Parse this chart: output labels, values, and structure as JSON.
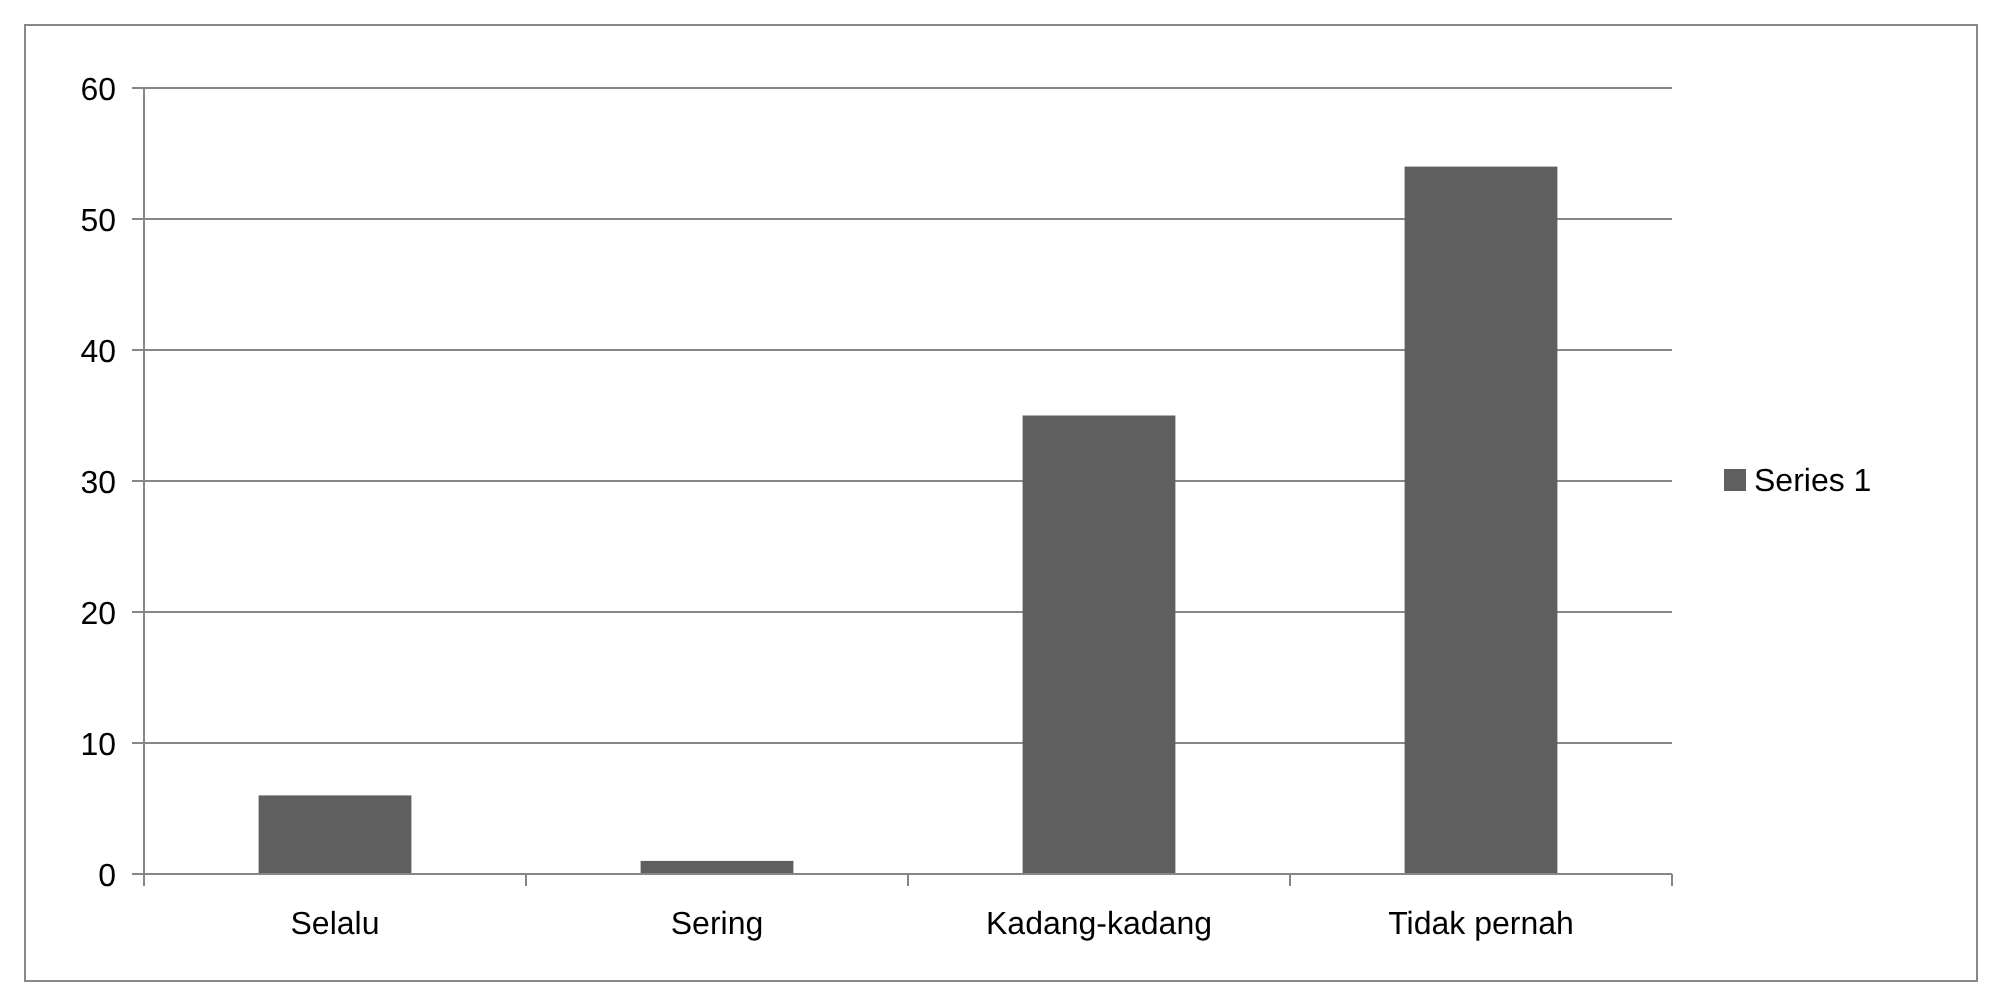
{
  "chart_data": {
    "type": "bar",
    "categories": [
      "Selalu",
      "Sering",
      "Kadang-kadang",
      "Tidak pernah"
    ],
    "series": [
      {
        "name": "Series 1",
        "color": "#5f5f5f",
        "values": [
          6,
          1,
          35,
          54
        ]
      }
    ],
    "ylim": [
      0,
      60
    ],
    "yticks": [
      0,
      10,
      20,
      30,
      40,
      50,
      60
    ],
    "grid": "y",
    "legend": "right"
  }
}
